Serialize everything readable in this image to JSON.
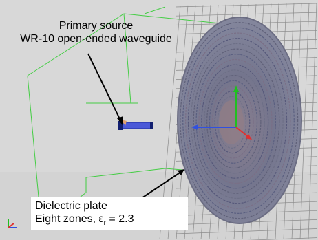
{
  "source_label": {
    "line1": "Primary source",
    "line2": "WR-10 open-ended waveguide"
  },
  "plate_label": {
    "line1": "Dielectric plate",
    "line2_prefix": "Eight zones, ",
    "epsilon_symbol": "ε",
    "epsilon_subscript": "r",
    "line2_suffix": " = 2.3"
  },
  "colors": {
    "background": "#dcdcdc",
    "mesh_grid": "#8a8a8a",
    "bounding_box": "#33cc33",
    "plate_outer": "#7f7f9b",
    "plate_rings": "#5f6078",
    "waveguide": "#3344cc",
    "axis_x": "#e03030",
    "axis_y": "#20c020",
    "axis_z": "#3050e0"
  },
  "icons": [
    "coordinate-axes-icon"
  ]
}
